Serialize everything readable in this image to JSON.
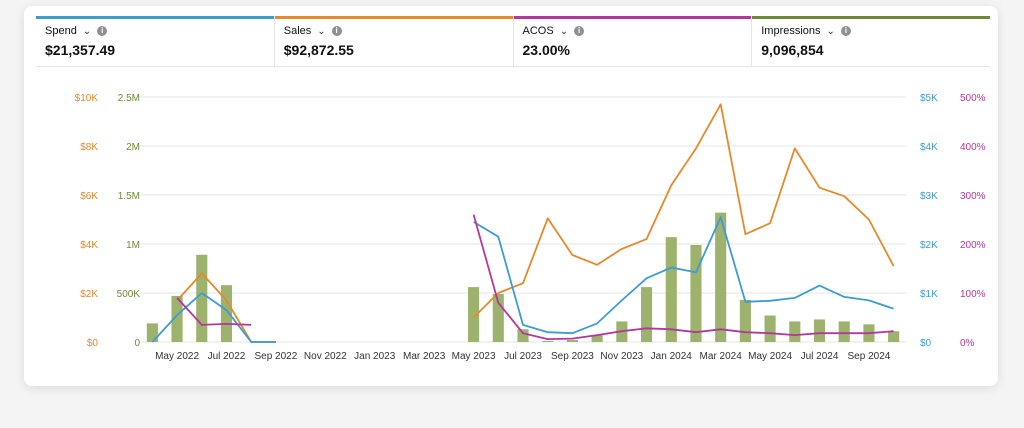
{
  "metrics": [
    {
      "label": "Spend",
      "value": "$21,357.49",
      "color": "#3e9cd1"
    },
    {
      "label": "Sales",
      "value": "$92,872.55",
      "color": "#e5892b"
    },
    {
      "label": "ACOS",
      "value": "23.00%",
      "color": "#b4389b"
    },
    {
      "label": "Impressions",
      "value": "9,096,854",
      "color": "#6e8a38"
    }
  ],
  "icons": {
    "dropdown": "chevron-down-icon",
    "info": "info-icon"
  },
  "chart_data": {
    "type": "bar+line",
    "x": [
      "Apr 2022",
      "May 2022",
      "Jun 2022",
      "Jul 2022",
      "Aug 2022",
      "Sep 2022",
      "Oct 2022",
      "Nov 2022",
      "Dec 2022",
      "Jan 2023",
      "Feb 2023",
      "Mar 2023",
      "Apr 2023",
      "May 2023",
      "Jun 2023",
      "Jul 2023",
      "Aug 2023",
      "Sep 2023",
      "Oct 2023",
      "Nov 2023",
      "Dec 2023",
      "Jan 2024",
      "Feb 2024",
      "Mar 2024",
      "Apr 2024",
      "May 2024",
      "Jun 2024",
      "Jul 2024",
      "Aug 2024",
      "Sep 2024",
      "Oct 2024"
    ],
    "x_tick_labels": [
      "May 2022",
      "Jul 2022",
      "Sep 2022",
      "Nov 2022",
      "Jan 2023",
      "Mar 2023",
      "May 2023",
      "Jul 2023",
      "Sep 2023",
      "Nov 2023",
      "Jan 2024",
      "Mar 2024",
      "May 2024",
      "Jul 2024",
      "Sep 2024"
    ],
    "axes": {
      "sales": {
        "ticks": [
          "$0",
          "$2K",
          "$4K",
          "$6K",
          "$8K",
          "$10K"
        ],
        "range": [
          0,
          10000
        ],
        "color": "#e5892b"
      },
      "impressions": {
        "ticks": [
          "0",
          "500K",
          "1M",
          "1.5M",
          "2M",
          "2.5M"
        ],
        "range": [
          0,
          2500000
        ],
        "color": "#6e8a38"
      },
      "spend": {
        "ticks": [
          "$0",
          "$1K",
          "$2K",
          "$3K",
          "$4K",
          "$5K"
        ],
        "range": [
          0,
          5000
        ],
        "color": "#3e9cd1"
      },
      "acos": {
        "ticks": [
          "0%",
          "100%",
          "200%",
          "300%",
          "400%",
          "500%"
        ],
        "range": [
          0,
          500
        ],
        "color": "#b4389b"
      }
    },
    "series": [
      {
        "name": "Impressions",
        "type": "bar",
        "axis": "impressions",
        "color": "#9db26c",
        "values": [
          190000,
          470000,
          890000,
          580000,
          0,
          0,
          0,
          0,
          0,
          0,
          0,
          0,
          0,
          560000,
          490000,
          130000,
          10000,
          20000,
          70000,
          210000,
          560000,
          1070000,
          990000,
          1320000,
          430000,
          270000,
          210000,
          230000,
          210000,
          180000,
          110000
        ]
      },
      {
        "name": "Sales",
        "type": "line",
        "axis": "sales",
        "color": "#e5892b",
        "values": [
          null,
          1700,
          2800,
          1700,
          0,
          0,
          null,
          null,
          null,
          null,
          null,
          null,
          null,
          1000,
          2000,
          2400,
          5050,
          3550,
          3150,
          3800,
          4200,
          6400,
          7900,
          9700,
          4400,
          4850,
          7900,
          6300,
          5950,
          5000,
          3100
        ]
      },
      {
        "name": "Spend",
        "type": "line",
        "axis": "spend",
        "color": "#3e9cd1",
        "values": [
          0,
          550,
          1000,
          650,
          0,
          0,
          null,
          null,
          null,
          null,
          null,
          null,
          null,
          2450,
          2150,
          350,
          200,
          180,
          380,
          850,
          1300,
          1520,
          1420,
          2550,
          820,
          840,
          900,
          1150,
          920,
          850,
          680
        ]
      },
      {
        "name": "ACOS",
        "type": "line",
        "axis": "acos",
        "color": "#b4389b",
        "values": [
          null,
          90,
          35,
          37,
          35,
          null,
          null,
          null,
          null,
          null,
          null,
          null,
          null,
          260,
          80,
          18,
          6,
          7,
          14,
          22,
          28,
          26,
          20,
          26,
          20,
          18,
          14,
          18,
          18,
          18,
          22
        ]
      }
    ],
    "grid": true
  }
}
